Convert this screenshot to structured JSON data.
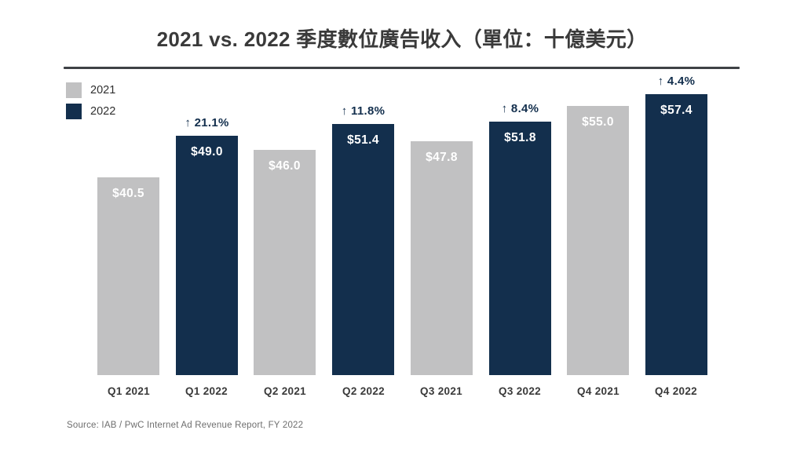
{
  "chart_data": {
    "type": "bar",
    "title": "2021 vs. 2022 季度數位廣告收入（單位：十億美元）",
    "categories": [
      "Q1 2021",
      "Q1 2022",
      "Q2 2021",
      "Q2 2022",
      "Q3 2021",
      "Q3 2022",
      "Q4 2021",
      "Q4 2022"
    ],
    "values": [
      40.5,
      49.0,
      46.0,
      51.4,
      47.8,
      51.8,
      55.0,
      57.4
    ],
    "bar_value_labels": [
      "$40.5",
      "$49.0",
      "$46.0",
      "$51.4",
      "$47.8",
      "$51.8",
      "$55.0",
      "$57.4"
    ],
    "growth_labels": [
      "",
      "↑ 21.1%",
      "",
      "↑ 11.8%",
      "",
      "↑ 8.4%",
      "",
      "↑ 4.4%"
    ],
    "series_membership": [
      "2021",
      "2022",
      "2021",
      "2022",
      "2021",
      "2022",
      "2021",
      "2022"
    ],
    "legend": [
      {
        "name": "2021",
        "color": "#c1c1c2"
      },
      {
        "name": "2022",
        "color": "#132f4d"
      }
    ],
    "legend_position": "top-left",
    "ylim": [
      0,
      60
    ],
    "grid": false,
    "xlabel": "",
    "ylabel": "",
    "value_label_color": "#ffffff",
    "growth_label_color": "#132f4d",
    "source": "Source: IAB / PwC Internet Ad Revenue Report, FY 2022"
  }
}
